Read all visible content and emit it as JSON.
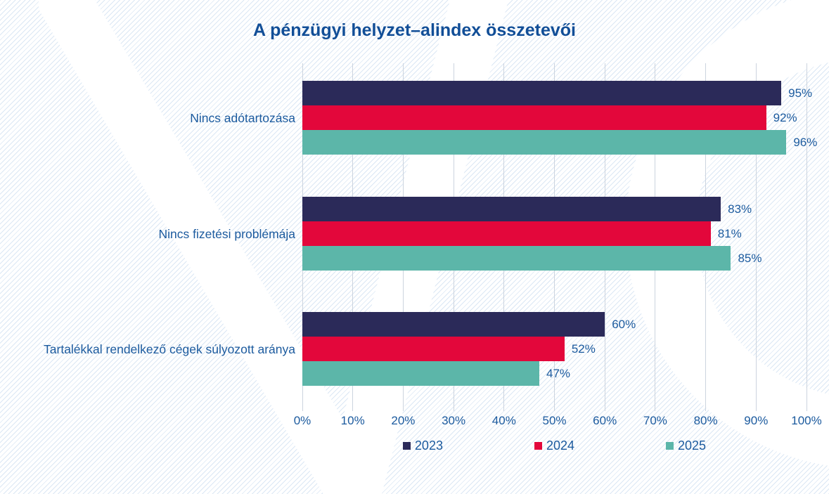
{
  "page": {
    "background_stripe_color": "#dbe7f4",
    "watermark_color": "#ffffff"
  },
  "chart_data": {
    "type": "bar",
    "orientation": "horizontal",
    "title": "A pénzügyi helyzet–alindex összetevői",
    "title_color": "#114e97",
    "text_color": "#1b5a9e",
    "grid_color": "#ccd4df",
    "grid": true,
    "xlim": [
      0,
      100
    ],
    "value_suffix": "%",
    "legend_position": "bottom",
    "categories": [
      "Nincs adótartozása",
      "Nincs fizetési problémája",
      "Tartalékkal rendelkező cégek súlyozott aránya"
    ],
    "series": [
      {
        "name": "2023",
        "color": "#2b2a59",
        "values": [
          95,
          83,
          60
        ],
        "labels": [
          "95%",
          "83%",
          "60%"
        ]
      },
      {
        "name": "2024",
        "color": "#e3073b",
        "values": [
          92,
          81,
          52
        ],
        "labels": [
          "92%",
          "81%",
          "52%"
        ]
      },
      {
        "name": "2025",
        "color": "#5cb6a9",
        "values": [
          96,
          85,
          47
        ],
        "labels": [
          "96%",
          "85%",
          "47%"
        ]
      }
    ],
    "x_ticks": [
      "0%",
      "10%",
      "20%",
      "30%",
      "40%",
      "50%",
      "60%",
      "70%",
      "80%",
      "90%",
      "100%"
    ]
  }
}
